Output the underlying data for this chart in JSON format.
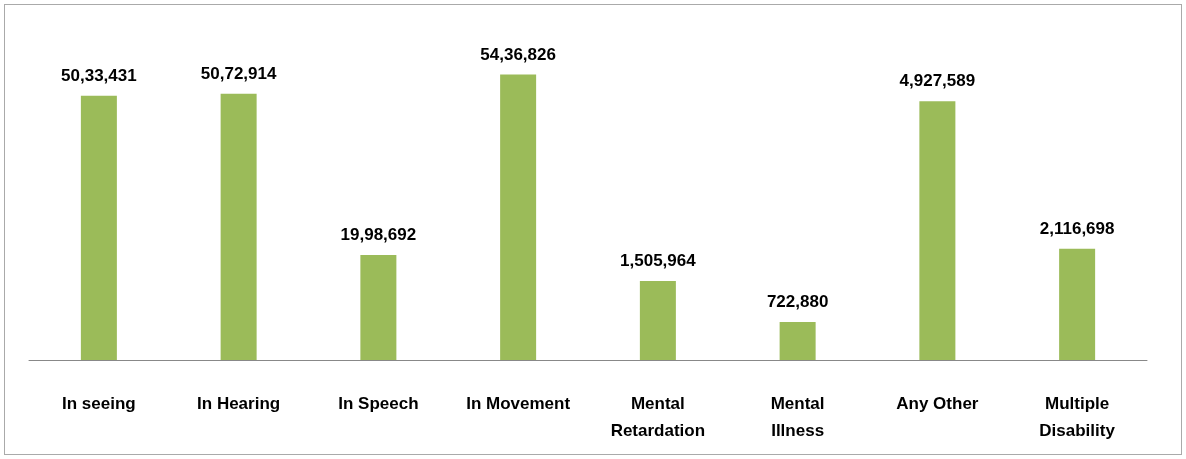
{
  "chart_data": {
    "type": "bar",
    "categories": [
      "In seeing",
      "In Hearing",
      "In Speech",
      "In Movement",
      "Mental\nRetardation",
      "Mental\nIllness",
      "Any Other",
      "Multiple\nDisability"
    ],
    "values": [
      5033431,
      5072914,
      1998692,
      5436826,
      1505964,
      722880,
      4927589,
      2116698
    ],
    "value_labels": [
      "50,33,431",
      "50,72,914",
      "19,98,692",
      "54,36,826",
      "1,505,964",
      "722,880",
      "4,927,589",
      "2,116,698"
    ],
    "color": "#9bbb59"
  }
}
